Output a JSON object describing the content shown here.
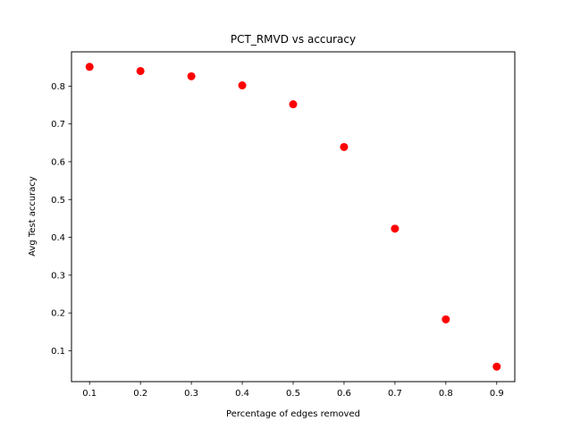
{
  "chart_data": {
    "type": "scatter",
    "title": "PCT_RMVD vs accuracy",
    "xlabel": "Percentage of edges removed",
    "ylabel": "Avg Test accuracy",
    "x": [
      0.1,
      0.2,
      0.3,
      0.4,
      0.5,
      0.6,
      0.7,
      0.8,
      0.9
    ],
    "y": [
      0.851,
      0.84,
      0.826,
      0.802,
      0.752,
      0.639,
      0.423,
      0.183,
      0.058
    ],
    "xlim": [
      0.0645,
      0.9355
    ],
    "ylim": [
      0.0183,
      0.8907
    ],
    "xticks": [
      "0.1",
      "0.2",
      "0.3",
      "0.4",
      "0.5",
      "0.6",
      "0.7",
      "0.8",
      "0.9"
    ],
    "yticks": [
      "0.1",
      "0.2",
      "0.3",
      "0.4",
      "0.5",
      "0.6",
      "0.7",
      "0.8"
    ],
    "marker_color": "#ff0000",
    "grid": false,
    "legend": "none"
  }
}
